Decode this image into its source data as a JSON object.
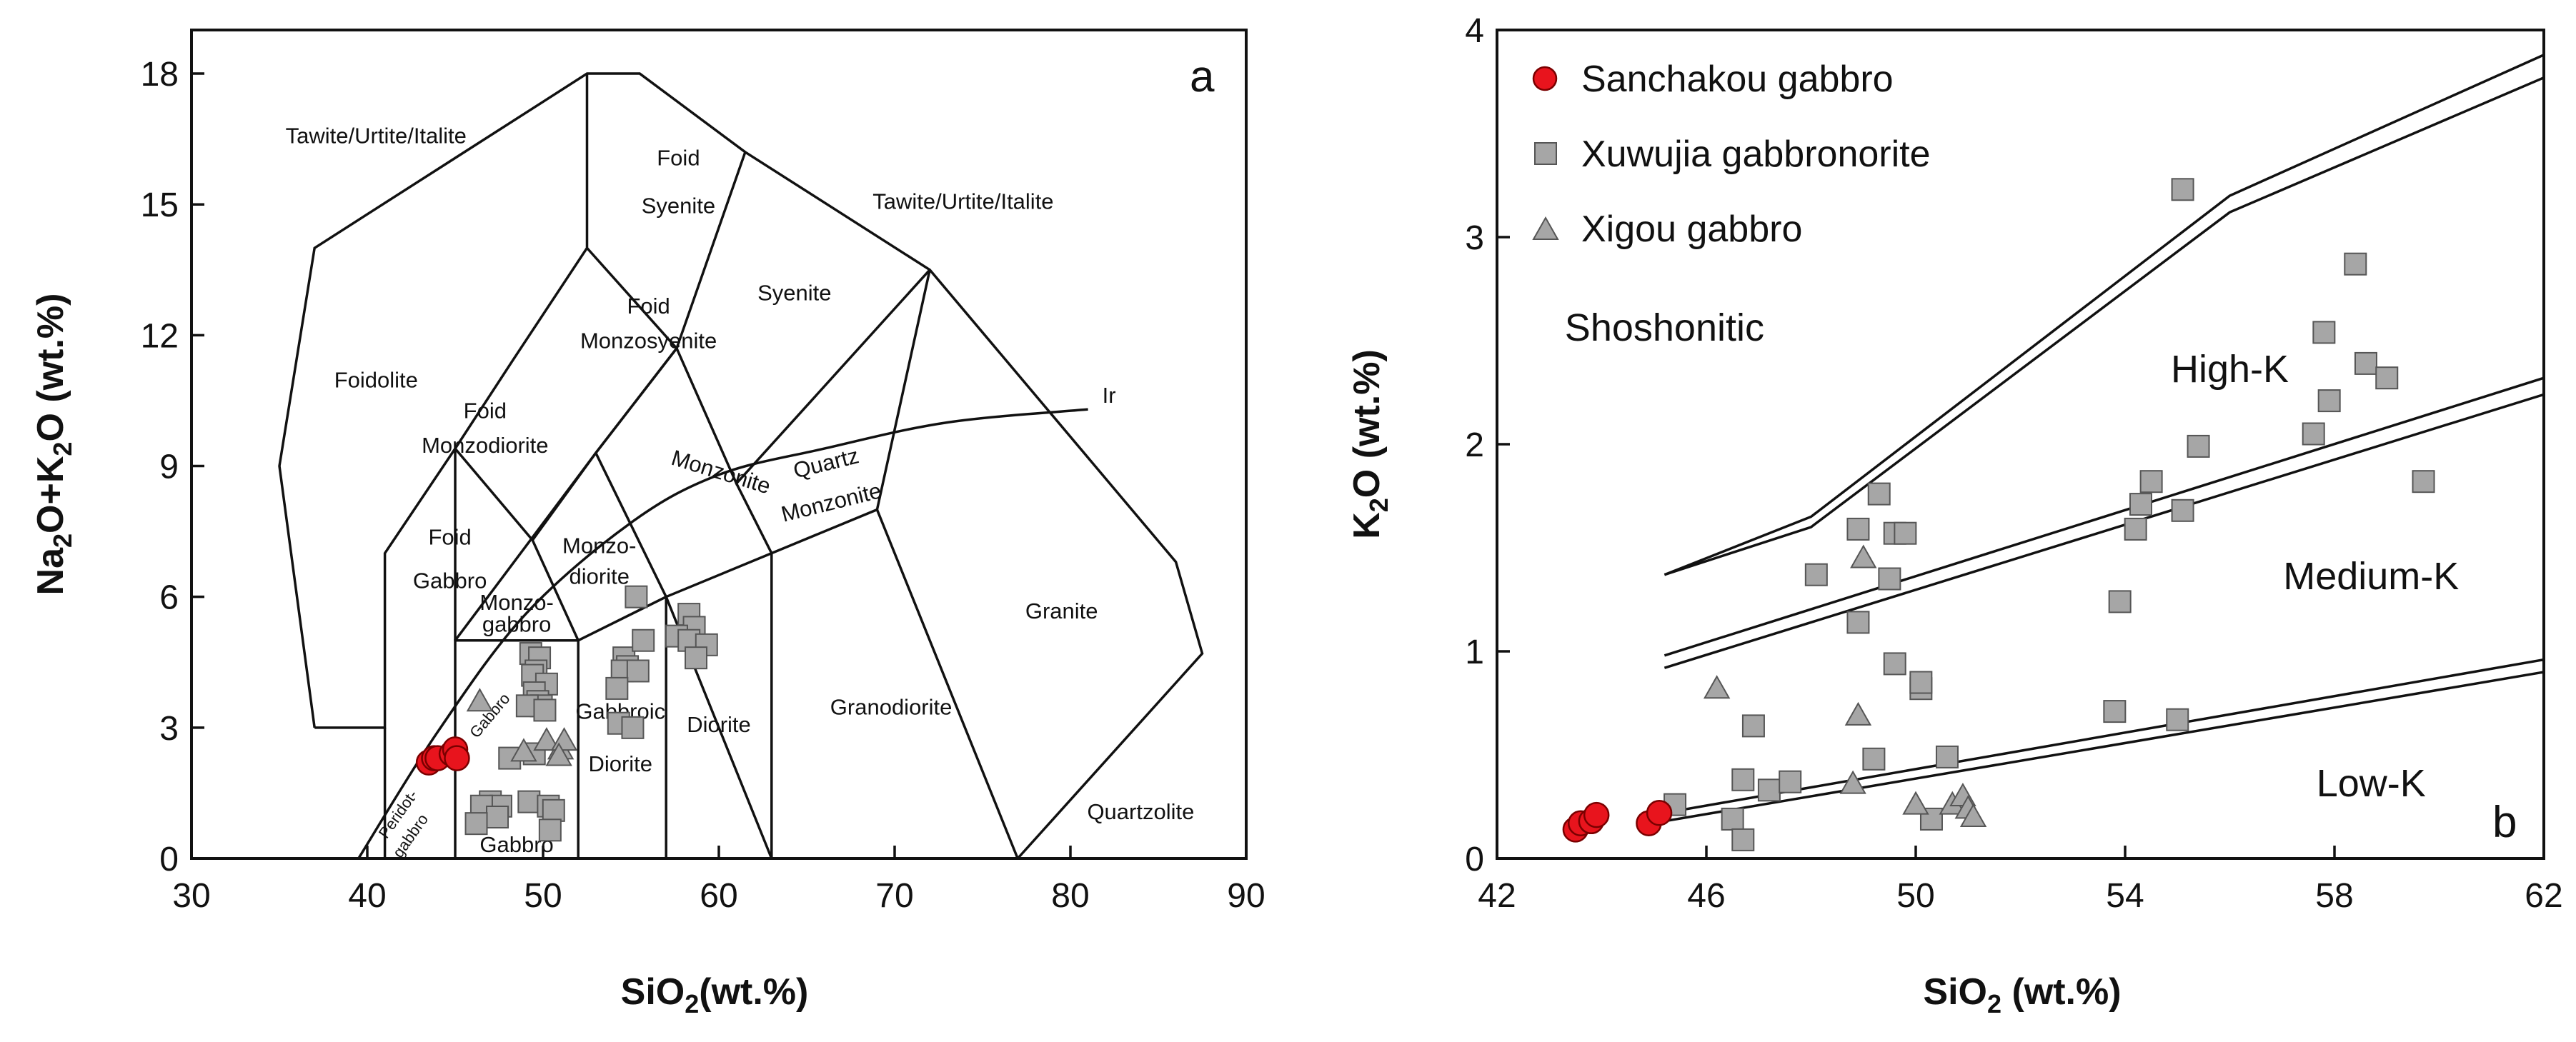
{
  "chart_data": [
    {
      "type": "scatter",
      "panel": "a",
      "xlabel_main": "SiO",
      "xlabel_sub": "2",
      "xlabel_rest": "(wt.%)",
      "ylabel_parts": [
        "Na",
        "2",
        "O+K",
        "2",
        "O (wt.%)"
      ],
      "xlim": [
        30,
        90
      ],
      "ylim": [
        0,
        19
      ],
      "xticks": [
        "30",
        "40",
        "50",
        "60",
        "70",
        "80",
        "90"
      ],
      "yticks": [
        "0",
        "3",
        "6",
        "9",
        "12",
        "15",
        "18"
      ],
      "grid": false,
      "fields": [
        {
          "key": "f0",
          "label": "Tawite/Urtite/Italite",
          "x": 40.5,
          "y": 16.4
        },
        {
          "key": "f1",
          "label": "Foid",
          "x": 57.7,
          "y": 15.9
        },
        {
          "key": "f2",
          "label": "Syenite",
          "x": 57.7,
          "y": 14.8
        },
        {
          "key": "f3",
          "label": "Tawite/Urtite/Italite",
          "x": 73.9,
          "y": 14.9
        },
        {
          "key": "f4",
          "label": "Foid",
          "x": 56.0,
          "y": 12.5
        },
        {
          "key": "f5",
          "label": "Monzosyenite",
          "x": 56.0,
          "y": 11.7
        },
        {
          "key": "f6",
          "label": "Syenite",
          "x": 64.3,
          "y": 12.8
        },
        {
          "key": "f7",
          "label": "Foidolite",
          "x": 40.5,
          "y": 10.8
        },
        {
          "key": "f8",
          "label": "Foid",
          "x": 46.7,
          "y": 10.1
        },
        {
          "key": "f9",
          "label": "Monzodiorite",
          "x": 46.7,
          "y": 9.3
        },
        {
          "key": "f10",
          "label": "Foid",
          "x": 44.7,
          "y": 7.2
        },
        {
          "key": "f11",
          "label": "Gabbro",
          "x": 44.7,
          "y": 6.2
        },
        {
          "key": "f12",
          "label": "Monzo-",
          "x": 53.2,
          "y": 7.0
        },
        {
          "key": "f13",
          "label": "diorite",
          "x": 53.2,
          "y": 6.3
        },
        {
          "key": "f14",
          "label": "Monzo-",
          "x": 48.5,
          "y": 5.7
        },
        {
          "key": "f15",
          "label": "gabbro",
          "x": 48.5,
          "y": 5.2
        },
        {
          "key": "f16",
          "label": "Granite",
          "x": 79.5,
          "y": 5.5
        },
        {
          "key": "f17",
          "label": "Diorite",
          "x": 60.0,
          "y": 2.9
        },
        {
          "key": "f18",
          "label": "Granodiorite",
          "x": 69.8,
          "y": 3.3
        },
        {
          "key": "f19",
          "label": "Gabbroic",
          "x": 54.4,
          "y": 3.2
        },
        {
          "key": "f20",
          "label": "Diorite",
          "x": 54.4,
          "y": 2.0
        },
        {
          "key": "f21",
          "label": "Gabbro",
          "x": 48.5,
          "y": 0.15
        },
        {
          "key": "f22",
          "label": "Quartzolite",
          "x": 84.0,
          "y": 0.9
        },
        {
          "key": "f23",
          "label": "Ir",
          "x": 82.2,
          "y": 10.45
        }
      ],
      "rotated_labels": [
        {
          "key": "r0",
          "label": "Monzonite",
          "x": 60.0,
          "y": 8.7,
          "angle": 17,
          "size": "md"
        },
        {
          "key": "r1",
          "label": "Quartz",
          "x": 66.2,
          "y": 8.9,
          "angle": -14,
          "size": "md"
        },
        {
          "key": "r2",
          "label": "Monzonite",
          "x": 66.5,
          "y": 8.0,
          "angle": -14,
          "size": "md"
        },
        {
          "key": "r3",
          "label": "Gabbro",
          "x": 47.2,
          "y": 3.2,
          "angle": -50,
          "size": "sm"
        },
        {
          "key": "r4",
          "label": "Peridot-",
          "x": 42.0,
          "y": 0.95,
          "angle": -55,
          "size": "sm"
        },
        {
          "key": "r5",
          "label": "gabbro",
          "x": 42.7,
          "y": 0.45,
          "angle": -55,
          "size": "sm"
        }
      ],
      "boundary_lines": [
        [
          [
            37,
            3
          ],
          [
            35,
            9
          ],
          [
            37,
            14
          ],
          [
            52.5,
            18
          ],
          [
            55.5,
            18
          ],
          [
            61.5,
            16.2
          ],
          [
            72,
            13.5
          ],
          [
            86,
            6.8
          ],
          [
            87.5,
            4.7
          ],
          [
            77,
            0
          ]
        ],
        [
          [
            37,
            3
          ],
          [
            41,
            3
          ],
          [
            41,
            7
          ],
          [
            45,
            9.4
          ],
          [
            48.4,
            11.5
          ],
          [
            52.5,
            14
          ],
          [
            52.5,
            18
          ]
        ],
        [
          [
            41,
            0
          ],
          [
            41,
            3
          ]
        ],
        [
          [
            45,
            0
          ],
          [
            45,
            5
          ],
          [
            52,
            5
          ],
          [
            57,
            6
          ],
          [
            63,
            0
          ]
        ],
        [
          [
            45,
            5
          ],
          [
            45,
            9.4
          ]
        ],
        [
          [
            45,
            9.4
          ],
          [
            49.4,
            7.3
          ],
          [
            53,
            9.3
          ],
          [
            57.6,
            11.7
          ],
          [
            52.5,
            14
          ]
        ],
        [
          [
            49.4,
            7.3
          ],
          [
            52,
            5
          ]
        ],
        [
          [
            52,
            0
          ],
          [
            52,
            5
          ]
        ],
        [
          [
            57,
            0
          ],
          [
            57,
            6
          ]
        ],
        [
          [
            63,
            0
          ],
          [
            63,
            7
          ]
        ],
        [
          [
            53,
            9.3
          ],
          [
            57,
            6
          ],
          [
            63,
            7
          ],
          [
            69,
            8
          ],
          [
            77,
            0
          ]
        ],
        [
          [
            61,
            8.6
          ],
          [
            63,
            7
          ]
        ],
        [
          [
            57.6,
            11.7
          ],
          [
            61,
            8.6
          ],
          [
            72,
            13.5
          ]
        ],
        [
          [
            57.6,
            11.7
          ],
          [
            61.5,
            16.2
          ]
        ],
        [
          [
            69,
            8
          ],
          [
            72,
            13.5
          ]
        ],
        [
          [
            45,
            5
          ],
          [
            53,
            9.3
          ],
          [
            57.6,
            11.7
          ]
        ]
      ],
      "curve": [
        [
          39.5,
          0
        ],
        [
          44,
          2.9
        ],
        [
          49,
          5.6
        ],
        [
          55,
          7.7
        ],
        [
          60,
          8.8
        ],
        [
          66,
          9.4
        ],
        [
          73,
          10.0
        ],
        [
          81,
          10.3
        ]
      ],
      "series": [
        {
          "name": "Sanchakou gabbro",
          "marker": "circle",
          "color": "#e8141d",
          "points": [
            [
              43.5,
              2.2
            ],
            [
              43.8,
              2.3
            ],
            [
              44.0,
              2.3
            ],
            [
              44.8,
              2.4
            ],
            [
              45.0,
              2.5
            ],
            [
              45.1,
              2.3
            ]
          ]
        },
        {
          "name": "Xuwujia gabbronorite",
          "marker": "square",
          "color": "#a6a6a6",
          "points": [
            [
              49.3,
              4.7
            ],
            [
              49.8,
              4.6
            ],
            [
              49.6,
              4.3
            ],
            [
              49.4,
              4.2
            ],
            [
              50.2,
              4.0
            ],
            [
              49.5,
              3.8
            ],
            [
              49.7,
              3.6
            ],
            [
              49.9,
              3.5
            ],
            [
              49.1,
              3.5
            ],
            [
              50.1,
              3.4
            ],
            [
              48.1,
              2.3
            ],
            [
              49.5,
              2.4
            ],
            [
              47.0,
              1.3
            ],
            [
              47.6,
              1.2
            ],
            [
              46.5,
              1.2
            ],
            [
              47.4,
              0.95
            ],
            [
              49.2,
              1.3
            ],
            [
              50.3,
              1.2
            ],
            [
              50.6,
              1.1
            ],
            [
              50.4,
              0.65
            ],
            [
              46.2,
              0.8
            ],
            [
              55.3,
              6.0
            ],
            [
              54.6,
              4.6
            ],
            [
              54.8,
              4.4
            ],
            [
              54.5,
              4.3
            ],
            [
              55.4,
              4.3
            ],
            [
              54.2,
              3.9
            ],
            [
              55.7,
              5.0
            ],
            [
              54.3,
              3.1
            ],
            [
              55.1,
              3.0
            ],
            [
              58.3,
              5.6
            ],
            [
              58.6,
              5.3
            ],
            [
              57.6,
              5.1
            ],
            [
              58.3,
              5.0
            ],
            [
              59.3,
              4.9
            ],
            [
              58.7,
              4.6
            ]
          ]
        },
        {
          "name": "Xigou gabbro",
          "marker": "triangle",
          "color": "#a6a6a6",
          "points": [
            [
              46.4,
              3.6
            ],
            [
              48.9,
              2.45
            ],
            [
              50.2,
              2.7
            ],
            [
              51.0,
              2.5
            ],
            [
              51.2,
              2.7
            ],
            [
              50.9,
              2.35
            ]
          ]
        }
      ]
    },
    {
      "type": "scatter",
      "panel": "b",
      "xlabel_main": "SiO",
      "xlabel_sub": "2",
      "xlabel_rest": " (wt.%)",
      "ylabel_parts": [
        "K",
        "2",
        "O (wt.%)"
      ],
      "xlim": [
        42,
        62
      ],
      "ylim": [
        0,
        4
      ],
      "xticks": [
        "42",
        "46",
        "50",
        "54",
        "58",
        "62"
      ],
      "yticks": [
        "0",
        "1",
        "2",
        "3",
        "4"
      ],
      "grid": false,
      "legend_position": "top-left",
      "fields": [
        {
          "key": "g0",
          "label": "Shoshonitic",
          "x": 45.2,
          "y": 2.5
        },
        {
          "key": "g1",
          "label": "High-K",
          "x": 56.0,
          "y": 2.3
        },
        {
          "key": "g2",
          "label": "Medium-K",
          "x": 58.7,
          "y": 1.3
        },
        {
          "key": "g3",
          "label": "Low-K",
          "x": 58.7,
          "y": 0.3
        }
      ],
      "boundary_lines": [
        [
          [
            45.2,
            1.37
          ],
          [
            48,
            1.65
          ],
          [
            56,
            3.2
          ],
          [
            62,
            3.88
          ]
        ],
        [
          [
            45.2,
            1.37
          ],
          [
            48,
            1.6
          ],
          [
            56,
            3.12
          ],
          [
            62,
            3.77
          ]
        ],
        [
          [
            45.2,
            0.98
          ],
          [
            62,
            2.32
          ]
        ],
        [
          [
            45.2,
            0.92
          ],
          [
            62,
            2.24
          ]
        ],
        [
          [
            45.2,
            0.22
          ],
          [
            62,
            0.96
          ]
        ],
        [
          [
            45.2,
            0.18
          ],
          [
            62,
            0.9
          ]
        ]
      ],
      "series": [
        {
          "name": "Sanchakou gabbro",
          "marker": "circle",
          "color": "#e8141d",
          "points": [
            [
              43.5,
              0.14
            ],
            [
              43.6,
              0.17
            ],
            [
              43.8,
              0.18
            ],
            [
              43.9,
              0.21
            ],
            [
              44.9,
              0.17
            ],
            [
              45.1,
              0.22
            ]
          ]
        },
        {
          "name": "Xuwujia gabbronorite",
          "marker": "square",
          "color": "#a6a6a6",
          "points": [
            [
              45.4,
              0.26
            ],
            [
              46.5,
              0.19
            ],
            [
              46.7,
              0.09
            ],
            [
              46.7,
              0.38
            ],
            [
              46.9,
              0.64
            ],
            [
              47.2,
              0.33
            ],
            [
              47.6,
              0.37
            ],
            [
              48.1,
              1.37
            ],
            [
              48.9,
              1.59
            ],
            [
              48.9,
              1.14
            ],
            [
              49.2,
              0.48
            ],
            [
              49.3,
              1.76
            ],
            [
              49.5,
              1.35
            ],
            [
              49.6,
              1.57
            ],
            [
              49.6,
              0.94
            ],
            [
              49.8,
              1.57
            ],
            [
              50.1,
              0.82
            ],
            [
              50.1,
              0.85
            ],
            [
              50.3,
              0.19
            ],
            [
              50.6,
              0.49
            ],
            [
              53.8,
              0.71
            ],
            [
              53.9,
              1.24
            ],
            [
              54.2,
              1.59
            ],
            [
              54.3,
              1.71
            ],
            [
              54.5,
              1.82
            ],
            [
              55.0,
              0.67
            ],
            [
              55.1,
              1.68
            ],
            [
              55.1,
              3.23
            ],
            [
              55.4,
              1.99
            ],
            [
              57.6,
              2.05
            ],
            [
              57.8,
              2.54
            ],
            [
              57.9,
              2.21
            ],
            [
              58.4,
              2.87
            ],
            [
              58.6,
              2.39
            ],
            [
              59.0,
              2.32
            ],
            [
              59.7,
              1.82
            ]
          ]
        },
        {
          "name": "Xigou gabbro",
          "marker": "triangle",
          "color": "#a6a6a6",
          "points": [
            [
              46.2,
              0.82
            ],
            [
              48.8,
              0.36
            ],
            [
              48.9,
              0.69
            ],
            [
              49.0,
              1.45
            ],
            [
              50.0,
              0.26
            ],
            [
              50.7,
              0.26
            ],
            [
              50.9,
              0.3
            ],
            [
              51.0,
              0.24
            ],
            [
              51.1,
              0.2
            ]
          ]
        }
      ]
    }
  ]
}
